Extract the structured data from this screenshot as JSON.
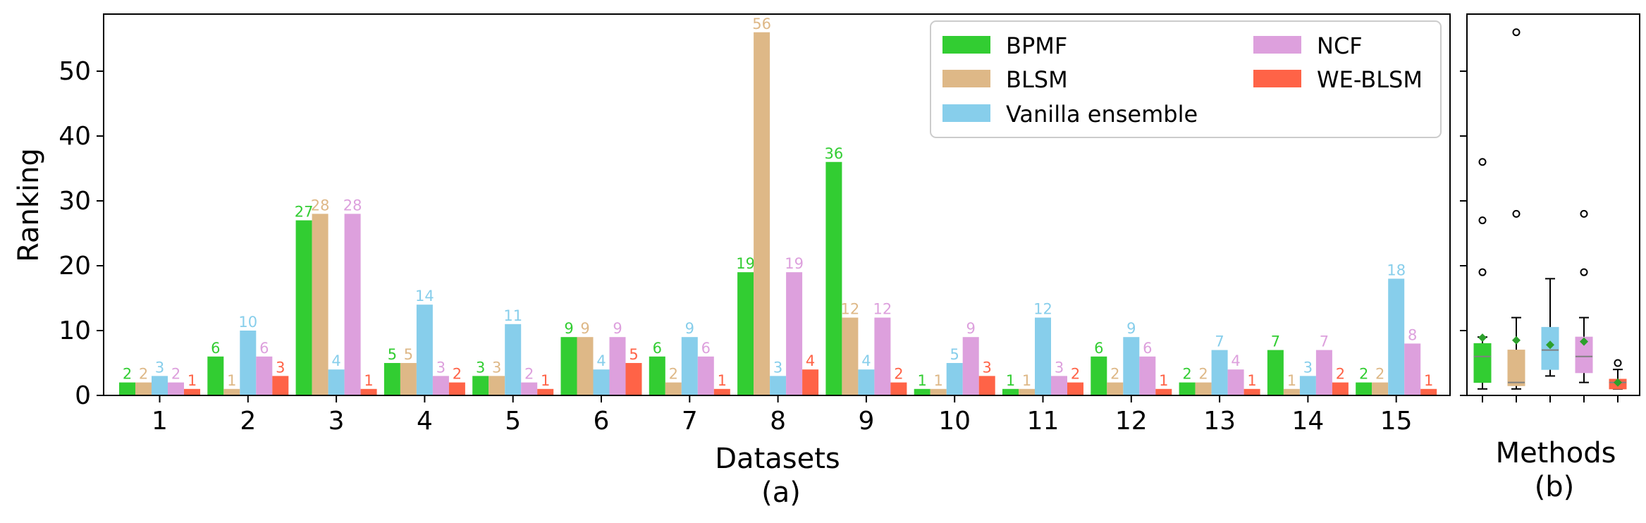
{
  "chart_data": [
    {
      "type": "bar",
      "subplot_label": "(a)",
      "xlabel": "Datasets",
      "ylabel": "Ranking",
      "ylim": [
        0,
        58.8
      ],
      "yticks": [
        0,
        10,
        20,
        30,
        40,
        50
      ],
      "categories": [
        "1",
        "2",
        "3",
        "4",
        "5",
        "6",
        "7",
        "8",
        "9",
        "10",
        "11",
        "12",
        "13",
        "14",
        "15"
      ],
      "series": [
        {
          "name": "BPMF",
          "color": "#32cd32",
          "values": [
            2,
            6,
            27,
            5,
            3,
            9,
            6,
            19,
            36,
            1,
            1,
            6,
            2,
            7,
            2
          ]
        },
        {
          "name": "BLSM",
          "color": "#deb887",
          "values": [
            2,
            1,
            28,
            5,
            3,
            9,
            2,
            56,
            12,
            1,
            1,
            2,
            2,
            1,
            2
          ]
        },
        {
          "name": "Vanilla ensemble",
          "color": "#87ceeb",
          "values": [
            3,
            10,
            4,
            14,
            11,
            4,
            9,
            3,
            4,
            5,
            12,
            9,
            7,
            3,
            18
          ]
        },
        {
          "name": "NCF",
          "color": "#dda0dd",
          "values": [
            2,
            6,
            28,
            3,
            2,
            9,
            6,
            19,
            12,
            9,
            3,
            6,
            4,
            7,
            8
          ]
        },
        {
          "name": "WE-BLSM",
          "color": "#ff6347",
          "values": [
            1,
            3,
            1,
            2,
            1,
            5,
            1,
            4,
            2,
            3,
            2,
            1,
            1,
            2,
            1
          ]
        }
      ],
      "legend_position": "top-right",
      "legend_columns": 2,
      "grid": false
    },
    {
      "type": "box",
      "subplot_label": "(b)",
      "xlabel": "Methods",
      "ylim": [
        0,
        58.8
      ],
      "shares_y_with": "(a)",
      "boxes": [
        {
          "method": "BPMF",
          "color": "#32cd32",
          "whisker_low": 1,
          "q1": 2,
          "median": 6,
          "q3": 8,
          "whisker_high": 9,
          "mean": 8.9,
          "outliers": [
            19,
            27,
            36
          ]
        },
        {
          "method": "BLSM",
          "color": "#deb887",
          "whisker_low": 1,
          "q1": 1.5,
          "median": 2,
          "q3": 7,
          "whisker_high": 12,
          "mean": 8.5,
          "outliers": [
            28,
            56
          ]
        },
        {
          "method": "Vanilla ensemble",
          "color": "#87ceeb",
          "whisker_low": 3,
          "q1": 4,
          "median": 7,
          "q3": 10.5,
          "whisker_high": 18,
          "mean": 7.8,
          "outliers": []
        },
        {
          "method": "NCF",
          "color": "#dda0dd",
          "whisker_low": 2,
          "q1": 3.5,
          "median": 6,
          "q3": 9,
          "whisker_high": 12,
          "mean": 8.3,
          "outliers": [
            19,
            28
          ]
        },
        {
          "method": "WE-BLSM",
          "color": "#ff6347",
          "whisker_low": 1,
          "q1": 1,
          "median": 2,
          "q3": 2.5,
          "whisker_high": 4,
          "mean": 2.0,
          "outliers": [
            5
          ]
        }
      ],
      "median_color": "#808080",
      "mean_marker_color": "#2ca02c",
      "grid": false
    }
  ]
}
